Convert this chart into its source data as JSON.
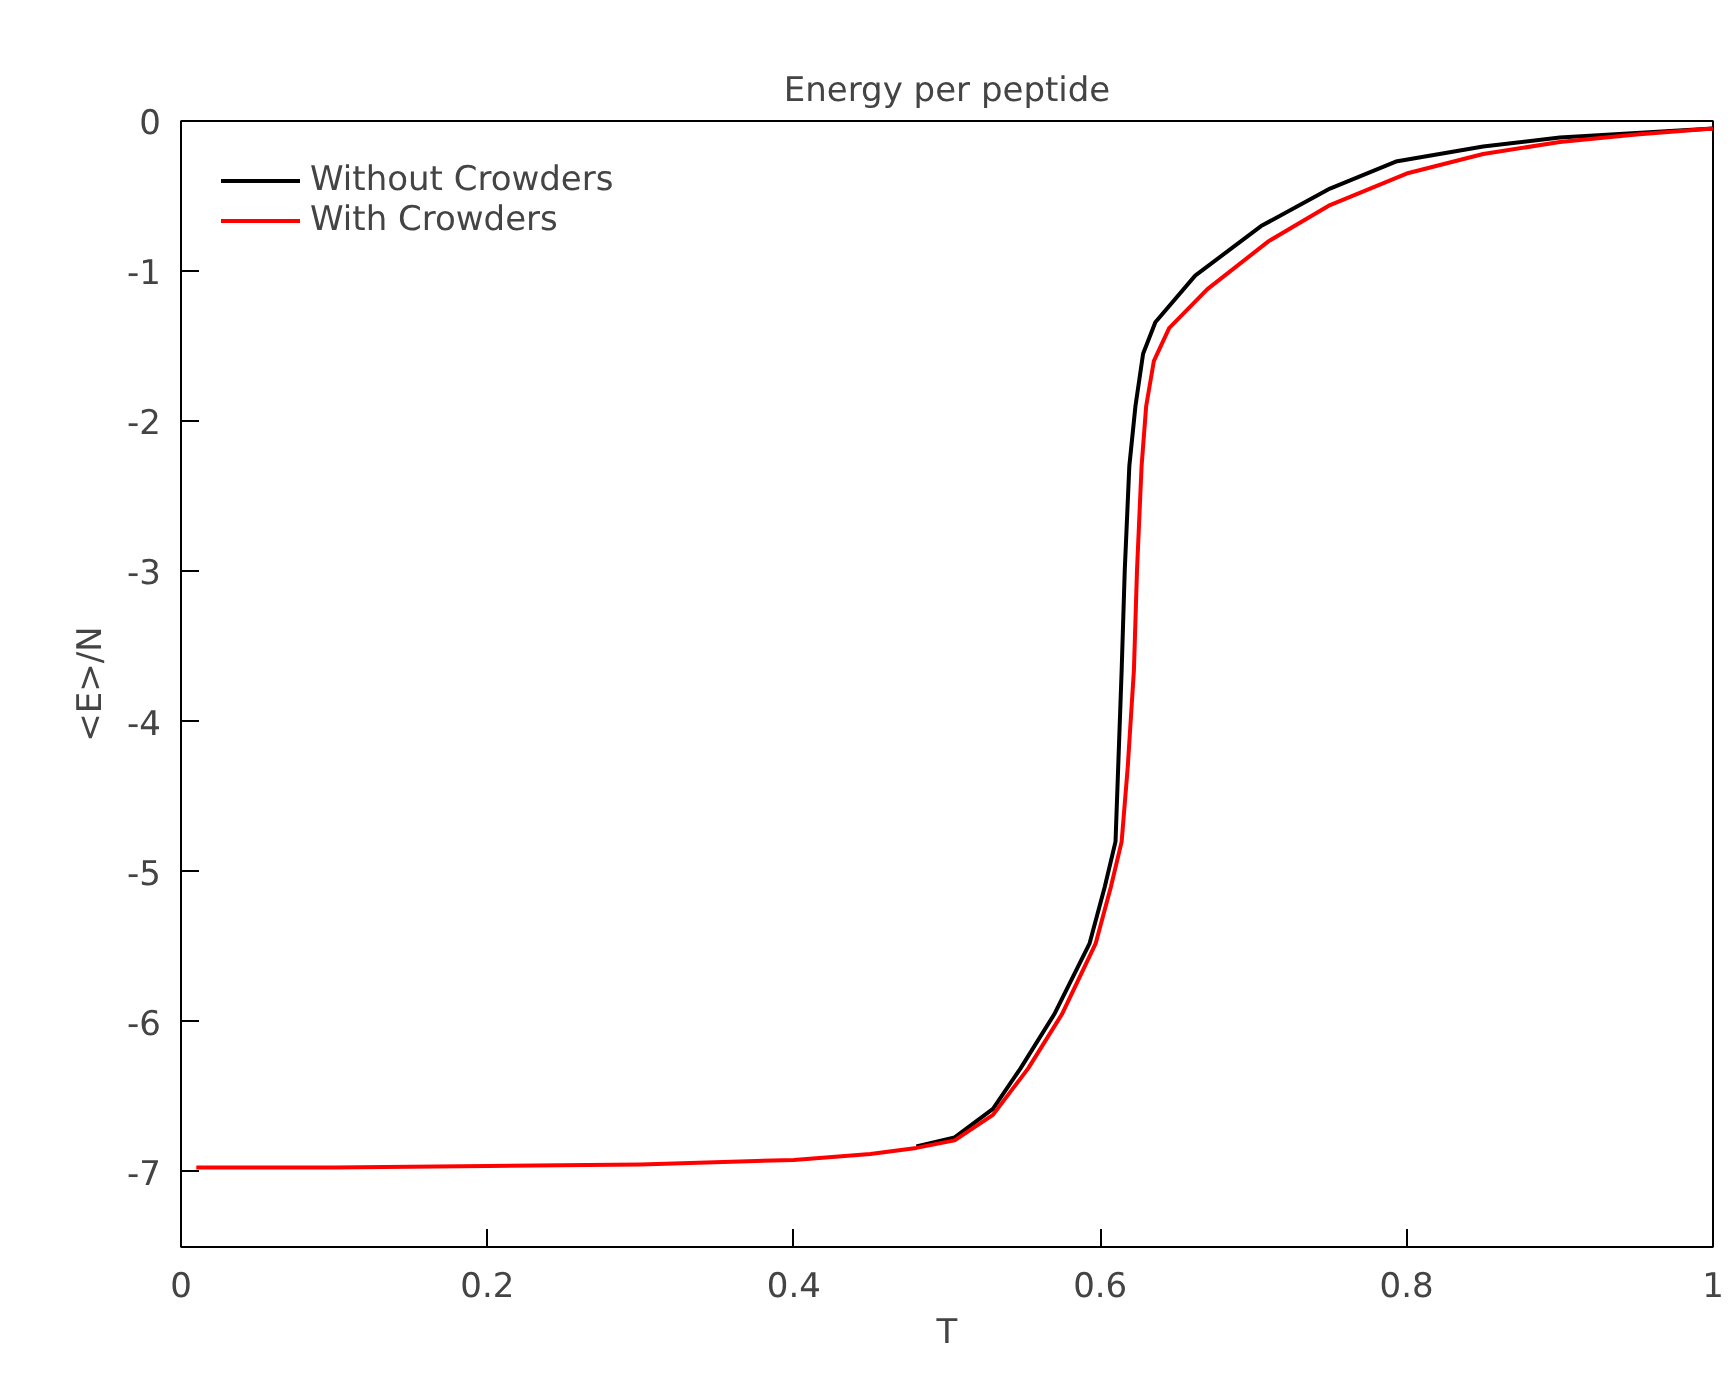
{
  "chart_data": {
    "type": "line",
    "title": "Energy per peptide",
    "xlabel": "T",
    "ylabel": "<E>/N",
    "xlim": [
      0,
      1
    ],
    "ylim": [
      -7.5,
      0
    ],
    "xticks": [
      0,
      0.2,
      0.4,
      0.6,
      0.8,
      1
    ],
    "yticks": [
      0,
      -1,
      -2,
      -3,
      -4,
      -5,
      -6,
      -7
    ],
    "grid": false,
    "legend": "top left",
    "marker": "none",
    "line_style": "solid",
    "series": [
      {
        "name": "Without Crowders",
        "color": "#000000",
        "x": [
          0.48,
          0.505,
          0.53,
          0.548,
          0.57,
          0.593,
          0.603,
          0.61,
          0.614,
          0.616,
          0.619,
          0.623,
          0.628,
          0.636,
          0.662,
          0.705,
          0.75,
          0.793,
          0.85,
          0.9,
          0.95,
          1.0
        ],
        "values": [
          -6.83,
          -6.77,
          -6.58,
          -6.31,
          -5.95,
          -5.48,
          -5.1,
          -4.8,
          -3.66,
          -3.0,
          -2.3,
          -1.9,
          -1.55,
          -1.34,
          -1.03,
          -0.7,
          -0.45,
          -0.27,
          -0.17,
          -0.11,
          -0.08,
          -0.05
        ]
      },
      {
        "name": "With Crowders",
        "color": "#ff0000",
        "x": [
          0.01,
          0.1,
          0.2,
          0.3,
          0.4,
          0.45,
          0.48,
          0.505,
          0.53,
          0.553,
          0.575,
          0.597,
          0.607,
          0.614,
          0.618,
          0.622,
          0.624,
          0.627,
          0.63,
          0.635,
          0.645,
          0.67,
          0.71,
          0.75,
          0.8,
          0.85,
          0.9,
          0.95,
          1.0
        ],
        "values": [
          -6.97,
          -6.97,
          -6.96,
          -6.95,
          -6.92,
          -6.88,
          -6.84,
          -6.79,
          -6.62,
          -6.31,
          -5.95,
          -5.48,
          -5.1,
          -4.8,
          -4.3,
          -3.66,
          -3.0,
          -2.3,
          -1.9,
          -1.6,
          -1.38,
          -1.12,
          -0.8,
          -0.56,
          -0.35,
          -0.22,
          -0.14,
          -0.09,
          -0.05
        ]
      }
    ]
  }
}
